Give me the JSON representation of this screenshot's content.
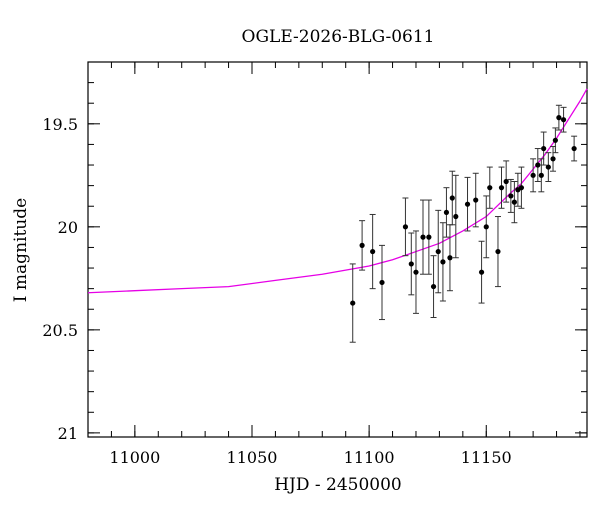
{
  "chart_data": {
    "type": "scatter",
    "title": "OGLE-2026-BLG-0611",
    "xlabel": "HJD - 2450000",
    "ylabel": "I magnitude",
    "xlim": [
      10980,
      11193
    ],
    "ylim": [
      21.02,
      19.2
    ],
    "y_inverted": true,
    "x_ticks": [
      11000,
      11050,
      11100,
      11150
    ],
    "x_tick_labels": [
      "11000",
      "11050",
      "11100",
      "11150"
    ],
    "y_ticks": [
      19.5,
      20,
      20.5,
      21
    ],
    "y_tick_labels": [
      "19.5",
      "20",
      "20.5",
      "21"
    ],
    "grid": false,
    "colors": {
      "model": "#e600e6",
      "points": "#000000",
      "errorbars": "#333333"
    },
    "series": [
      {
        "type": "points_with_errors",
        "points": [
          {
            "x": 11093.0,
            "y": 20.37,
            "err": 0.19
          },
          {
            "x": 11097.0,
            "y": 20.09,
            "err": 0.12
          },
          {
            "x": 11101.5,
            "y": 20.12,
            "err": 0.18
          },
          {
            "x": 11105.5,
            "y": 20.27,
            "err": 0.18
          },
          {
            "x": 11115.5,
            "y": 20.0,
            "err": 0.14
          },
          {
            "x": 11118.0,
            "y": 20.18,
            "err": 0.15
          },
          {
            "x": 11120.0,
            "y": 20.22,
            "err": 0.2
          },
          {
            "x": 11123.0,
            "y": 20.05,
            "err": 0.18
          },
          {
            "x": 11125.5,
            "y": 20.05,
            "err": 0.18
          },
          {
            "x": 11127.5,
            "y": 20.29,
            "err": 0.15
          },
          {
            "x": 11129.5,
            "y": 20.12,
            "err": 0.2
          },
          {
            "x": 11131.5,
            "y": 20.17,
            "err": 0.19
          },
          {
            "x": 11133.0,
            "y": 19.93,
            "err": 0.12
          },
          {
            "x": 11134.5,
            "y": 20.15,
            "err": 0.16
          },
          {
            "x": 11135.5,
            "y": 19.86,
            "err": 0.13
          },
          {
            "x": 11137.0,
            "y": 19.95,
            "err": 0.2
          },
          {
            "x": 11142.0,
            "y": 19.89,
            "err": 0.13
          },
          {
            "x": 11145.5,
            "y": 19.87,
            "err": 0.13
          },
          {
            "x": 11148.0,
            "y": 20.22,
            "err": 0.15
          },
          {
            "x": 11150.0,
            "y": 20.0,
            "err": 0.15
          },
          {
            "x": 11151.5,
            "y": 19.81,
            "err": 0.1
          },
          {
            "x": 11155.0,
            "y": 20.12,
            "err": 0.17
          },
          {
            "x": 11156.5,
            "y": 19.81,
            "err": 0.1
          },
          {
            "x": 11158.5,
            "y": 19.78,
            "err": 0.1
          },
          {
            "x": 11160.5,
            "y": 19.85,
            "err": 0.08
          },
          {
            "x": 11162.0,
            "y": 19.88,
            "err": 0.1
          },
          {
            "x": 11163.5,
            "y": 19.82,
            "err": 0.08
          },
          {
            "x": 11165.0,
            "y": 19.81,
            "err": 0.1
          },
          {
            "x": 11170.0,
            "y": 19.75,
            "err": 0.08
          },
          {
            "x": 11172.0,
            "y": 19.7,
            "err": 0.08
          },
          {
            "x": 11173.5,
            "y": 19.75,
            "err": 0.08
          },
          {
            "x": 11174.5,
            "y": 19.62,
            "err": 0.08
          },
          {
            "x": 11176.5,
            "y": 19.71,
            "err": 0.07
          },
          {
            "x": 11178.5,
            "y": 19.67,
            "err": 0.06
          },
          {
            "x": 11179.5,
            "y": 19.58,
            "err": 0.06
          },
          {
            "x": 11181.0,
            "y": 19.47,
            "err": 0.06
          },
          {
            "x": 11183.0,
            "y": 19.48,
            "err": 0.06
          },
          {
            "x": 11187.5,
            "y": 19.62,
            "err": 0.06
          }
        ]
      },
      {
        "type": "model_curve",
        "x": [
          10980,
          11000,
          11020,
          11040,
          11060,
          11080,
          11090,
          11100,
          11110,
          11120,
          11130,
          11140,
          11150,
          11160,
          11165,
          11170,
          11175,
          11180,
          11185,
          11190,
          11193
        ],
        "y": [
          20.32,
          20.31,
          20.3,
          20.29,
          20.26,
          20.23,
          20.21,
          20.19,
          20.16,
          20.12,
          20.08,
          20.02,
          19.95,
          19.84,
          19.79,
          19.72,
          19.65,
          19.57,
          19.48,
          19.39,
          19.33
        ]
      }
    ]
  }
}
